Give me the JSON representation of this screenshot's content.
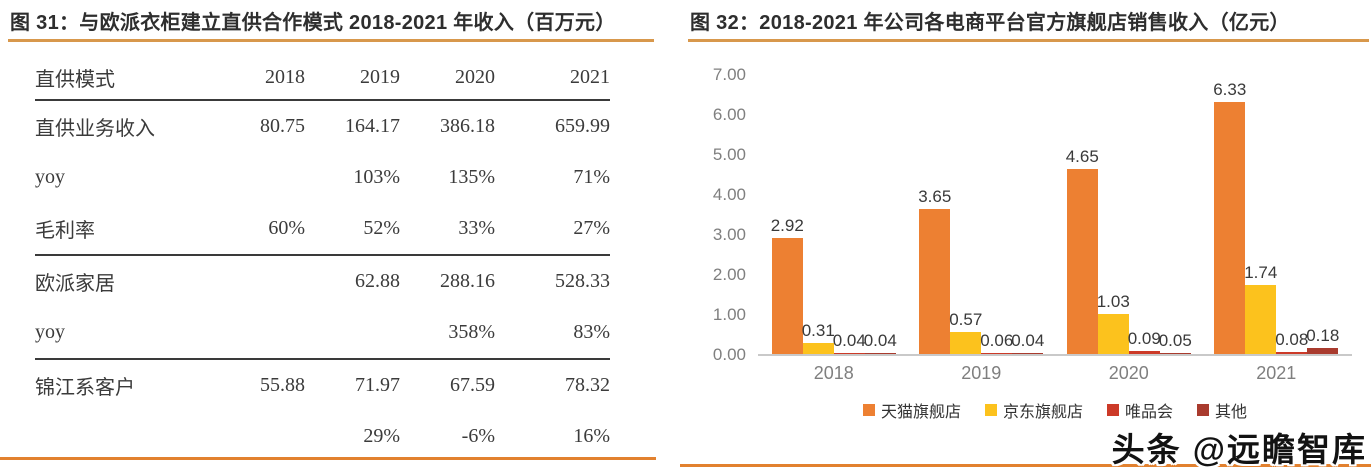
{
  "watermark": {
    "text": "头条 @远瞻智库"
  },
  "colors": {
    "title_underline": "#d8984c",
    "bottom_rule": "#e2812f",
    "table_rule": "#3a3a3a",
    "axis_line": "#c9c9c9",
    "axis_text": "#7f7f7f"
  },
  "chart_data": [
    {
      "type": "table",
      "title": "图 31：与欧派衣柜建立直供合作模式 2018-2021 年收入（百万元）",
      "columns": [
        "直供模式",
        "2018",
        "2019",
        "2020",
        "2021"
      ],
      "rows": [
        {
          "cells": [
            "直供业务收入",
            "80.75",
            "164.17",
            "386.18",
            "659.99"
          ],
          "rule_below": false
        },
        {
          "cells": [
            "yoy",
            "",
            "103%",
            "135%",
            "71%"
          ],
          "rule_below": false
        },
        {
          "cells": [
            "毛利率",
            "60%",
            "52%",
            "33%",
            "27%"
          ],
          "rule_below": true
        },
        {
          "cells": [
            "欧派家居",
            "",
            "62.88",
            "288.16",
            "528.33"
          ],
          "rule_below": false
        },
        {
          "cells": [
            "yoy",
            "",
            "",
            "358%",
            "83%"
          ],
          "rule_below": true
        },
        {
          "cells": [
            "锦江系客户",
            "55.88",
            "71.97",
            "67.59",
            "78.32"
          ],
          "rule_below": false
        },
        {
          "cells": [
            "",
            "",
            "29%",
            "-6%",
            "16%"
          ],
          "rule_below": false
        }
      ]
    },
    {
      "type": "bar",
      "title": "图 32：2018-2021 年公司各电商平台官方旗舰店销售收入（亿元）",
      "categories": [
        "2018",
        "2019",
        "2020",
        "2021"
      ],
      "series": [
        {
          "key": "tmall-flagship-store",
          "name": "天猫旗舰店",
          "color": "#ED8032",
          "values": [
            2.92,
            3.65,
            4.65,
            6.33
          ]
        },
        {
          "key": "jd-flagship-store",
          "name": "京东旗舰店",
          "color": "#FCC21D",
          "values": [
            0.31,
            0.57,
            1.03,
            1.74
          ]
        },
        {
          "key": "vipshop",
          "name": "唯品会",
          "color": "#CC3A28",
          "values": [
            0.04,
            0.06,
            0.09,
            0.08
          ]
        },
        {
          "key": "other",
          "name": "其他",
          "color": "#A93B2E",
          "values": [
            0.04,
            0.04,
            0.05,
            0.18
          ]
        }
      ],
      "xlabel": "",
      "ylabel": "",
      "ylim": [
        0,
        7
      ],
      "ytick_step": 1,
      "ytick_labels": [
        "0.00",
        "1.00",
        "2.00",
        "3.00",
        "4.00",
        "5.00",
        "6.00",
        "7.00"
      ],
      "grid": false,
      "data_labels": true,
      "legend_position": "bottom"
    }
  ]
}
